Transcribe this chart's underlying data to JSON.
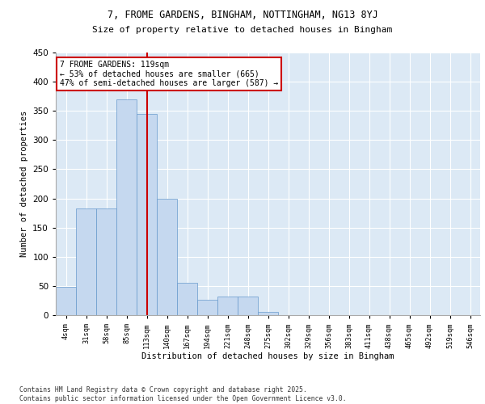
{
  "title1": "7, FROME GARDENS, BINGHAM, NOTTINGHAM, NG13 8YJ",
  "title2": "Size of property relative to detached houses in Bingham",
  "xlabel": "Distribution of detached houses by size in Bingham",
  "ylabel": "Number of detached properties",
  "categories": [
    "4sqm",
    "31sqm",
    "58sqm",
    "85sqm",
    "113sqm",
    "140sqm",
    "167sqm",
    "194sqm",
    "221sqm",
    "248sqm",
    "275sqm",
    "302sqm",
    "329sqm",
    "356sqm",
    "383sqm",
    "411sqm",
    "438sqm",
    "465sqm",
    "492sqm",
    "519sqm",
    "546sqm"
  ],
  "values": [
    48,
    183,
    183,
    370,
    345,
    200,
    55,
    27,
    32,
    32,
    6,
    0,
    0,
    0,
    0,
    0,
    0,
    0,
    0,
    0,
    0
  ],
  "bar_color": "#c5d8ef",
  "bar_edge_color": "#6699cc",
  "bar_width": 1.0,
  "vline_color": "#cc0000",
  "annotation_line1": "7 FROME GARDENS: 119sqm",
  "annotation_line2": "← 53% of detached houses are smaller (665)",
  "annotation_line3": "47% of semi-detached houses are larger (587) →",
  "annotation_box_color": "#cc0000",
  "plot_bg_color": "#dce9f5",
  "fig_bg_color": "#ffffff",
  "grid_color": "#ffffff",
  "ylim": [
    0,
    450
  ],
  "yticks": [
    0,
    50,
    100,
    150,
    200,
    250,
    300,
    350,
    400,
    450
  ],
  "footer1": "Contains HM Land Registry data © Crown copyright and database right 2025.",
  "footer2": "Contains public sector information licensed under the Open Government Licence v3.0.",
  "vline_bar_index": 4.5
}
